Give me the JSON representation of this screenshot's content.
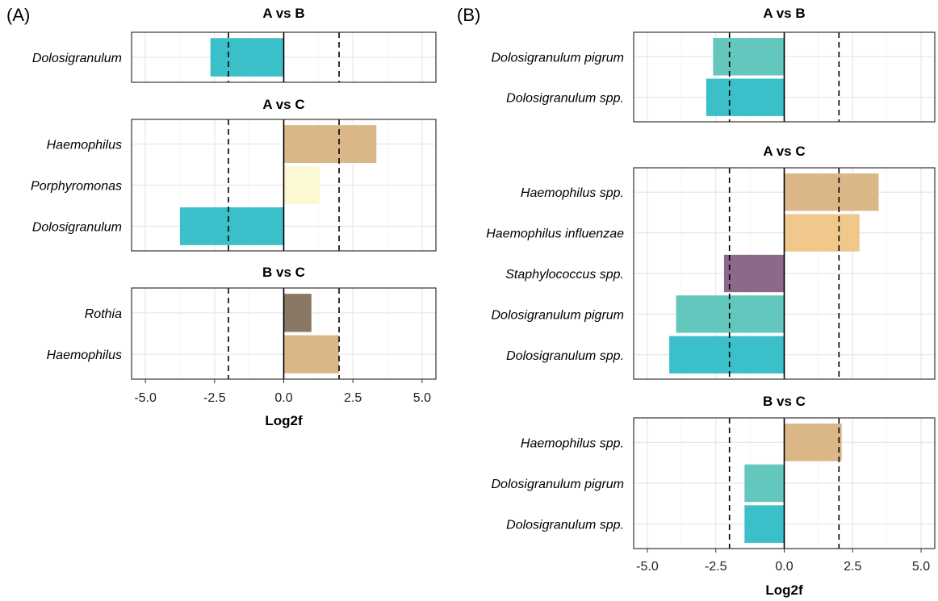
{
  "chart_data": [
    {
      "type": "bar",
      "orientation": "horizontal",
      "panel_label": "(A)",
      "xlabel": "Log2f",
      "xlim": [
        -5.5,
        5.5
      ],
      "x_ticks": [
        "-5.0",
        "-2.5",
        "0.0",
        "2.5",
        "5.0"
      ],
      "x_tick_values": [
        -5,
        -2.5,
        0,
        2.5,
        5
      ],
      "threshold_lines": [
        -2,
        2
      ],
      "grid": true,
      "facets": [
        {
          "title": "A vs B",
          "bars": [
            {
              "label": "Dolosigranulum",
              "value": -2.65,
              "color": "#3bbfc8"
            }
          ]
        },
        {
          "title": "A vs C",
          "bars": [
            {
              "label": "Haemophilus",
              "value": 3.35,
              "color": "#dbb787"
            },
            {
              "label": "Porphyromonas",
              "value": 1.3,
              "color": "#fcf9d2"
            },
            {
              "label": "Dolosigranulum",
              "value": -3.75,
              "color": "#3bbfc8"
            }
          ]
        },
        {
          "title": "B vs C",
          "bars": [
            {
              "label": "Rothia",
              "value": 1.0,
              "color": "#8a7766"
            },
            {
              "label": "Haemophilus",
              "value": 2.0,
              "color": "#dbb787"
            }
          ]
        }
      ]
    },
    {
      "type": "bar",
      "orientation": "horizontal",
      "panel_label": "(B)",
      "xlabel": "Log2f",
      "xlim": [
        -5.5,
        5.5
      ],
      "x_ticks": [
        "-5.0",
        "-2.5",
        "0.0",
        "2.5",
        "5.0"
      ],
      "x_tick_values": [
        -5,
        -2.5,
        0,
        2.5,
        5
      ],
      "threshold_lines": [
        -2,
        2
      ],
      "grid": true,
      "facets": [
        {
          "title": "A vs B",
          "bars": [
            {
              "label": "Dolosigranulum pigrum",
              "value": -2.6,
              "color": "#63c7be"
            },
            {
              "label": "Dolosigranulum spp.",
              "value": -2.85,
              "color": "#3bbfc8"
            }
          ]
        },
        {
          "title": "A vs C",
          "bars": [
            {
              "label": "Haemophilus spp.",
              "value": 3.45,
              "color": "#dbb787"
            },
            {
              "label": "Haemophilus influenzae",
              "value": 2.75,
              "color": "#f0c88c"
            },
            {
              "label": "Staphylococcus spp.",
              "value": -2.2,
              "color": "#8c688a"
            },
            {
              "label": "Dolosigranulum pigrum",
              "value": -3.95,
              "color": "#63c7be"
            },
            {
              "label": "Dolosigranulum spp.",
              "value": -4.2,
              "color": "#3bbfc8"
            }
          ]
        },
        {
          "title": "B vs C",
          "bars": [
            {
              "label": "Haemophilus spp.",
              "value": 2.1,
              "color": "#dbb787"
            },
            {
              "label": "Dolosigranulum pigrum",
              "value": -1.45,
              "color": "#63c7be"
            },
            {
              "label": "Dolosigranulum spp.",
              "value": -1.45,
              "color": "#3bbfc8"
            }
          ]
        }
      ]
    }
  ]
}
